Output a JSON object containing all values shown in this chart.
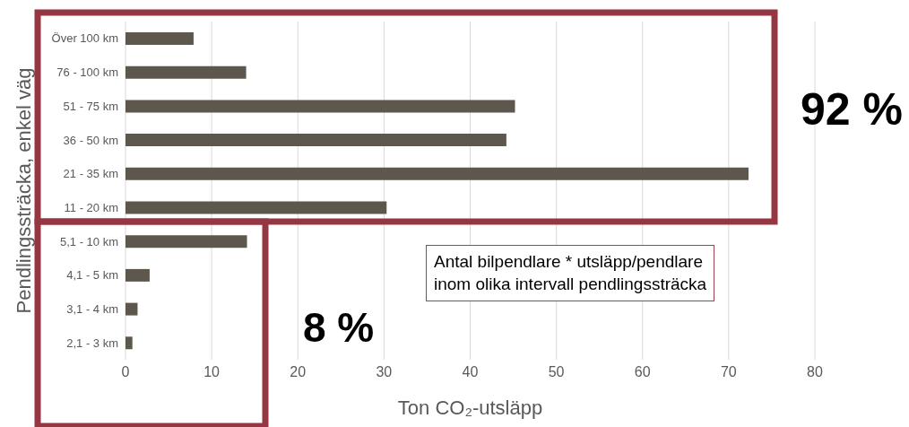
{
  "chart_data": {
    "type": "bar",
    "orientation": "horizontal",
    "categories": [
      "Över 100 km",
      "76 - 100 km",
      "51 - 75 km",
      "36 - 50 km",
      "21 - 35 km",
      "11 - 20 km",
      "5,1 - 10 km",
      "4,1 - 5 km",
      "3,1 - 4 km",
      "2,1 - 3 km"
    ],
    "values": [
      7.9,
      14.0,
      45.2,
      44.2,
      72.3,
      30.3,
      14.1,
      2.8,
      1.4,
      0.8
    ],
    "color": "#5e574d",
    "xlim": [
      0,
      80
    ],
    "xticks": [
      0,
      10,
      20,
      30,
      40,
      50,
      60,
      70,
      80
    ],
    "xlabel": "Ton CO₂-utsläpp",
    "ylabel": "Pendlingssträcka, enkel väg",
    "grid": "x",
    "legend": false,
    "annotations": [
      "92 %",
      "8 %",
      "Antal bilpendlare * utsläpp/pendlare\ninom olika intervall pendlingssträcka"
    ]
  }
}
